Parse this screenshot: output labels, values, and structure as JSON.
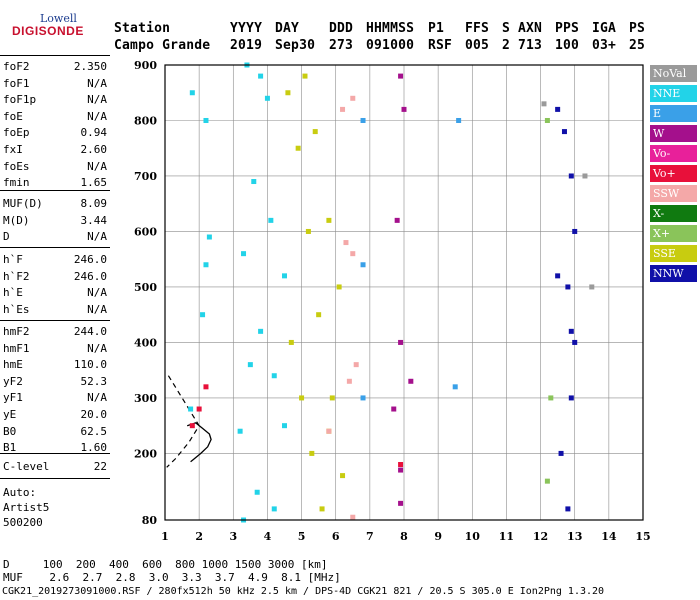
{
  "logo": {
    "line1": "Lowell",
    "line2": "DIGISONDE"
  },
  "header": {
    "labels": [
      "Station",
      "YYYY",
      "DAY",
      "DDD",
      "HHMMSS",
      "P1",
      "FFS",
      "S",
      "AXN",
      "PPS",
      "IGA",
      "PS"
    ],
    "values": [
      "Campo Grande",
      "2019",
      "Sep30",
      "273",
      "091000",
      "RSF",
      "005",
      "2",
      "713",
      "100",
      "03+",
      "25"
    ]
  },
  "params": {
    "group1": [
      {
        "name": "foF2",
        "value": "2.350"
      },
      {
        "name": "foF1",
        "value": "N/A"
      },
      {
        "name": "foF1p",
        "value": "N/A"
      },
      {
        "name": "foE",
        "value": "N/A"
      },
      {
        "name": "foEp",
        "value": "0.94"
      },
      {
        "name": "fxI",
        "value": "2.60"
      },
      {
        "name": "foEs",
        "value": "N/A"
      },
      {
        "name": "fmin",
        "value": "1.65"
      }
    ],
    "group2": [
      {
        "name": "MUF(D)",
        "value": "8.09"
      },
      {
        "name": "M(D)",
        "value": "3.44"
      },
      {
        "name": "D",
        "value": "N/A"
      }
    ],
    "group3": [
      {
        "name": "h`F",
        "value": "246.0"
      },
      {
        "name": "h`F2",
        "value": "246.0"
      },
      {
        "name": "h`E",
        "value": "N/A"
      },
      {
        "name": "h`Es",
        "value": "N/A"
      }
    ],
    "group4": [
      {
        "name": "hmF2",
        "value": "244.0"
      },
      {
        "name": "hmF1",
        "value": "N/A"
      },
      {
        "name": "hmE",
        "value": "110.0"
      },
      {
        "name": "yF2",
        "value": "52.3"
      },
      {
        "name": "yF1",
        "value": "N/A"
      },
      {
        "name": "yE",
        "value": "20.0"
      },
      {
        "name": "B0",
        "value": "62.5"
      },
      {
        "name": "B1",
        "value": "1.60"
      }
    ],
    "clevel": {
      "name": "C-level",
      "value": "22"
    },
    "auto": [
      "Auto:",
      "Artist5",
      "500200"
    ]
  },
  "legend": [
    {
      "label": "NoVal",
      "color": "#9a9a9a"
    },
    {
      "label": "NNE",
      "color": "#22d3e8"
    },
    {
      "label": "E",
      "color": "#3aa0e8"
    },
    {
      "label": "W",
      "color": "#a4108c"
    },
    {
      "label": "Vo-",
      "color": "#e8209a"
    },
    {
      "label": "Vo+",
      "color": "#e8103a"
    },
    {
      "label": "SSW",
      "color": "#f4a8a8"
    },
    {
      "label": "X-",
      "color": "#107a10"
    },
    {
      "label": "X+",
      "color": "#8ac45a"
    },
    {
      "label": "SSE",
      "color": "#c8cc10"
    },
    {
      "label": "NNW",
      "color": "#1010a8"
    }
  ],
  "bottom": {
    "d_row": "D     100  200  400  600  800 1000 1500 3000 [km]",
    "muf_row": "MUF    2.6  2.7  2.8  3.0  3.3  3.7  4.9  8.1 [MHz]",
    "footer": "CGK21_2019273091000.RSF / 280fx512h 50 kHz 2.5 km / DPS-4D CGK21 821 / 20.5 S 305.0 E Ion2Png 1.3.20"
  },
  "chart_data": {
    "type": "scatter",
    "xlabel": "",
    "ylabel": "",
    "xlim": [
      1,
      15
    ],
    "ylim": [
      80,
      900
    ],
    "x_ticks": [
      1,
      2,
      3,
      4,
      5,
      6,
      7,
      8,
      9,
      10,
      11,
      12,
      13,
      14,
      15
    ],
    "y_ticks": [
      80,
      200,
      300,
      400,
      500,
      600,
      700,
      800,
      900
    ],
    "grid": true,
    "series": [
      {
        "name": "NNE",
        "color": "#22d3e8",
        "points": [
          [
            1.75,
            280
          ],
          [
            2.1,
            450
          ],
          [
            2.2,
            540
          ],
          [
            2.3,
            590
          ],
          [
            3.2,
            240
          ],
          [
            3.5,
            360
          ],
          [
            3.8,
            420
          ],
          [
            4.2,
            340
          ],
          [
            4.5,
            250
          ],
          [
            3.3,
            560
          ],
          [
            3.6,
            690
          ],
          [
            4.1,
            620
          ],
          [
            4.5,
            520
          ],
          [
            3.4,
            900
          ],
          [
            3.8,
            880
          ],
          [
            4.0,
            840
          ],
          [
            3.3,
            80
          ],
          [
            3.7,
            130
          ],
          [
            4.2,
            100
          ],
          [
            1.8,
            850
          ],
          [
            2.2,
            800
          ]
        ]
      },
      {
        "name": "SSE",
        "color": "#c8cc10",
        "points": [
          [
            4.6,
            850
          ],
          [
            4.9,
            750
          ],
          [
            5.2,
            600
          ],
          [
            5.5,
            450
          ],
          [
            5.9,
            300
          ],
          [
            6.2,
            160
          ],
          [
            4.7,
            400
          ],
          [
            5.0,
            300
          ],
          [
            5.3,
            200
          ],
          [
            5.6,
            100
          ],
          [
            5.1,
            880
          ],
          [
            5.4,
            780
          ],
          [
            5.8,
            620
          ],
          [
            6.1,
            500
          ],
          [
            5.8,
            240
          ]
        ]
      },
      {
        "name": "SSW",
        "color": "#f4a8a8",
        "points": [
          [
            6.2,
            820
          ],
          [
            6.5,
            840
          ],
          [
            6.3,
            580
          ],
          [
            6.5,
            560
          ],
          [
            6.4,
            330
          ],
          [
            6.6,
            360
          ],
          [
            6.5,
            85
          ],
          [
            5.8,
            240
          ]
        ]
      },
      {
        "name": "W",
        "color": "#a4108c",
        "points": [
          [
            7.9,
            880
          ],
          [
            8.0,
            820
          ],
          [
            7.8,
            620
          ],
          [
            7.9,
            400
          ],
          [
            7.7,
            280
          ],
          [
            7.9,
            170
          ],
          [
            7.9,
            110
          ],
          [
            8.2,
            330
          ]
        ]
      },
      {
        "name": "NNW",
        "color": "#1010a8",
        "points": [
          [
            12.5,
            820
          ],
          [
            12.7,
            780
          ],
          [
            12.9,
            700
          ],
          [
            13.0,
            600
          ],
          [
            12.8,
            500
          ],
          [
            13.0,
            400
          ],
          [
            12.9,
            300
          ],
          [
            12.6,
            200
          ],
          [
            12.8,
            100
          ],
          [
            12.5,
            520
          ],
          [
            12.9,
            420
          ]
        ]
      },
      {
        "name": "E",
        "color": "#3aa0e8",
        "points": [
          [
            6.8,
            800
          ],
          [
            6.8,
            540
          ],
          [
            6.8,
            300
          ],
          [
            9.6,
            800
          ],
          [
            9.5,
            320
          ]
        ]
      },
      {
        "name": "Vo+",
        "color": "#e8103a",
        "points": [
          [
            1.8,
            250
          ],
          [
            2.0,
            280
          ],
          [
            2.2,
            320
          ],
          [
            7.9,
            180
          ]
        ]
      },
      {
        "name": "X+",
        "color": "#8ac45a",
        "points": [
          [
            12.2,
            800
          ],
          [
            12.3,
            300
          ],
          [
            12.2,
            150
          ]
        ]
      },
      {
        "name": "NoVal",
        "color": "#9a9a9a",
        "points": [
          [
            12.1,
            830
          ],
          [
            13.3,
            700
          ],
          [
            13.5,
            500
          ]
        ]
      }
    ],
    "profile_dashed": [
      [
        1.1,
        340
      ],
      [
        1.4,
        310
      ],
      [
        1.7,
        280
      ],
      [
        2.0,
        250
      ],
      [
        1.7,
        220
      ],
      [
        1.3,
        190
      ],
      [
        1.05,
        175
      ]
    ],
    "profile_solid": [
      [
        1.65,
        250
      ],
      [
        1.9,
        255
      ],
      [
        2.1,
        245
      ],
      [
        2.3,
        235
      ],
      [
        2.35,
        225
      ],
      [
        2.25,
        212
      ],
      [
        2.05,
        200
      ],
      [
        1.85,
        190
      ],
      [
        1.75,
        185
      ]
    ]
  }
}
